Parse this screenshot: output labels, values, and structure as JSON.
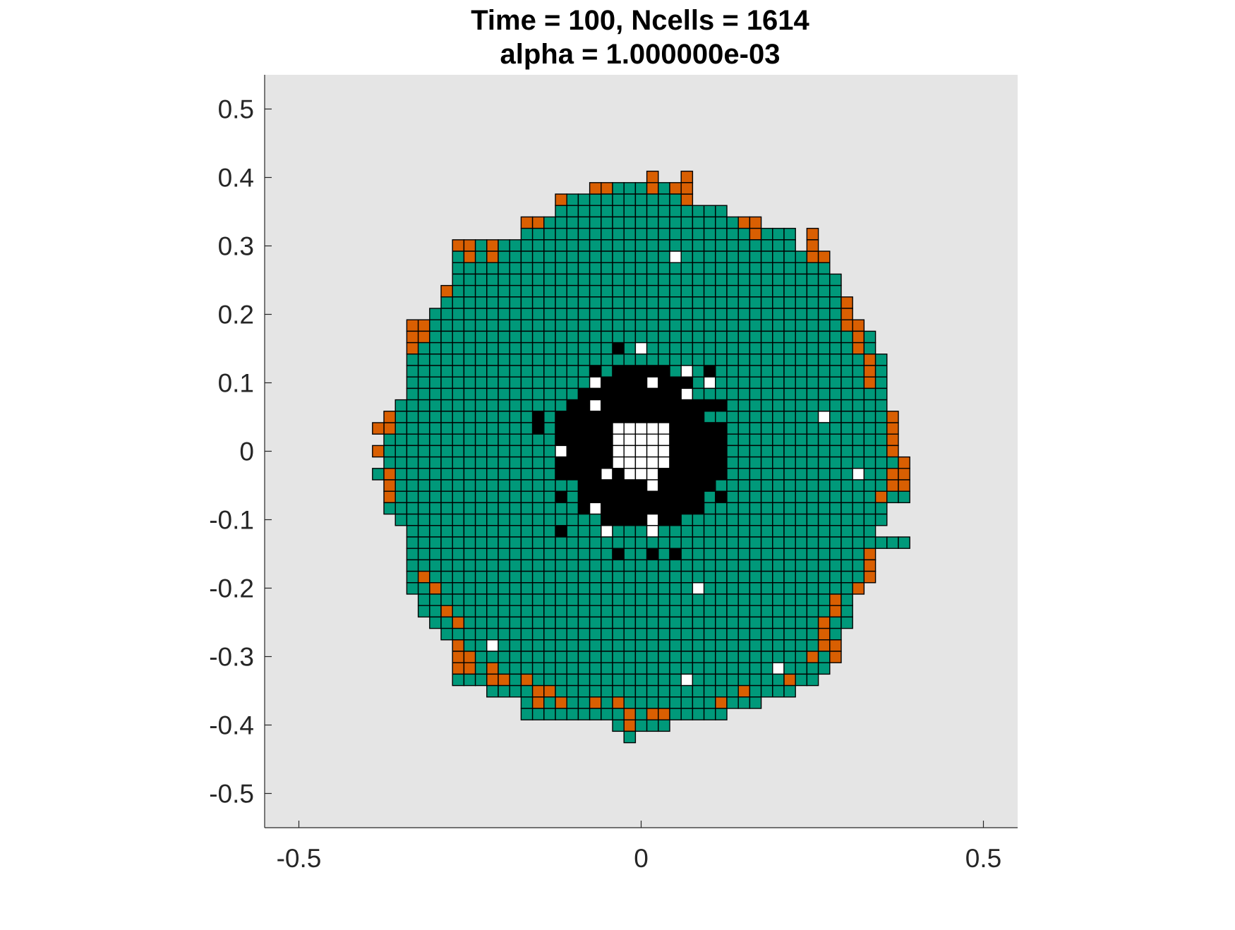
{
  "chart_data": {
    "type": "heatmap",
    "title": "Time = 100, Ncells = 1614",
    "subtitle": "alpha = 1.000000e-03",
    "xlabel": "",
    "ylabel": "",
    "xlim": [
      -0.55,
      0.55
    ],
    "ylim": [
      -0.55,
      0.55
    ],
    "x_ticks": [
      -0.5,
      0,
      0.5
    ],
    "x_tick_labels": [
      "-0.5",
      "0",
      "0.5"
    ],
    "y_ticks": [
      0.5,
      0.4,
      0.3,
      0.2,
      0.1,
      0,
      -0.1,
      -0.2,
      -0.3,
      -0.4,
      -0.5
    ],
    "y_tick_labels": [
      "0.5",
      "0.4",
      "0.3",
      "0.2",
      "0.1",
      "0",
      "-0.1",
      "-0.2",
      "-0.3",
      "-0.4",
      "-0.5"
    ],
    "grid": false,
    "cell_size": 0.0167,
    "colors": {
      "background": "#e5e5e5",
      "quiescent": "#00997a",
      "proliferating": "#d95f02",
      "necrotic": "#000000",
      "empty": "#ffffff",
      "cell_edge": "#000000"
    },
    "core_radius": 0.125,
    "hole_radius": 0.045,
    "outer_rows": [
      {
        "y": 0.39,
        "x": [
          -0.045,
          0.045
        ]
      },
      {
        "y": 0.373,
        "x": [
          -0.125,
          0.075
        ]
      },
      {
        "y": 0.357,
        "x": [
          -0.125,
          0.125
        ]
      },
      {
        "y": 0.34,
        "x": [
          -0.175,
          0.175
        ]
      },
      {
        "y": 0.323,
        "x": [
          -0.175,
          0.225
        ]
      },
      {
        "y": 0.307,
        "x": [
          -0.26,
          0.225
        ]
      },
      {
        "y": 0.29,
        "x": [
          -0.26,
          0.245
        ]
      },
      {
        "y": 0.273,
        "x": [
          -0.26,
          0.265
        ]
      },
      {
        "y": 0.257,
        "x": [
          -0.26,
          0.28
        ]
      },
      {
        "y": 0.24,
        "x": [
          -0.27,
          0.29
        ]
      },
      {
        "y": 0.223,
        "x": [
          -0.285,
          0.305
        ]
      },
      {
        "y": 0.207,
        "x": [
          -0.295,
          0.305
        ]
      },
      {
        "y": 0.19,
        "x": [
          -0.33,
          0.325
        ]
      },
      {
        "y": 0.173,
        "x": [
          -0.33,
          0.34
        ]
      },
      {
        "y": 0.157,
        "x": [
          -0.33,
          0.34
        ]
      },
      {
        "y": 0.14,
        "x": [
          -0.33,
          0.355
        ]
      },
      {
        "y": 0.123,
        "x": [
          -0.34,
          0.355
        ]
      },
      {
        "y": 0.107,
        "x": [
          -0.34,
          0.355
        ]
      },
      {
        "y": 0.09,
        "x": [
          -0.34,
          0.355
        ]
      },
      {
        "y": 0.073,
        "x": [
          -0.345,
          0.355
        ]
      },
      {
        "y": 0.057,
        "x": [
          -0.355,
          0.355
        ]
      },
      {
        "y": 0.04,
        "x": [
          -0.375,
          0.375
        ]
      },
      {
        "y": 0.023,
        "x": [
          -0.375,
          0.375
        ]
      },
      {
        "y": 0.007,
        "x": [
          -0.39,
          0.375
        ]
      },
      {
        "y": -0.01,
        "x": [
          -0.375,
          0.375
        ]
      },
      {
        "y": -0.027,
        "x": [
          -0.39,
          0.39
        ]
      },
      {
        "y": -0.043,
        "x": [
          -0.375,
          0.39
        ]
      },
      {
        "y": -0.06,
        "x": [
          -0.375,
          0.39
        ]
      },
      {
        "y": -0.077,
        "x": [
          -0.375,
          0.355
        ]
      },
      {
        "y": -0.093,
        "x": [
          -0.345,
          0.355
        ]
      },
      {
        "y": -0.11,
        "x": [
          -0.34,
          0.34
        ]
      },
      {
        "y": -0.127,
        "x": [
          -0.34,
          0.39
        ]
      },
      {
        "y": -0.143,
        "x": [
          -0.34,
          0.34
        ]
      },
      {
        "y": -0.16,
        "x": [
          -0.34,
          0.34
        ]
      },
      {
        "y": -0.177,
        "x": [
          -0.34,
          0.34
        ]
      },
      {
        "y": -0.193,
        "x": [
          -0.34,
          0.325
        ]
      },
      {
        "y": -0.21,
        "x": [
          -0.325,
          0.305
        ]
      },
      {
        "y": -0.227,
        "x": [
          -0.315,
          0.305
        ]
      },
      {
        "y": -0.243,
        "x": [
          -0.295,
          0.305
        ]
      },
      {
        "y": -0.26,
        "x": [
          -0.28,
          0.29
        ]
      },
      {
        "y": -0.277,
        "x": [
          -0.26,
          0.29
        ]
      },
      {
        "y": -0.293,
        "x": [
          -0.26,
          0.29
        ]
      },
      {
        "y": -0.31,
        "x": [
          -0.26,
          0.265
        ]
      },
      {
        "y": -0.327,
        "x": [
          -0.26,
          0.245
        ]
      },
      {
        "y": -0.343,
        "x": [
          -0.21,
          0.225
        ]
      },
      {
        "y": -0.36,
        "x": [
          -0.16,
          0.16
        ]
      },
      {
        "y": -0.377,
        "x": [
          -0.16,
          0.125
        ]
      },
      {
        "y": -0.393,
        "x": [
          -0.04,
          0.04
        ]
      },
      {
        "y": -0.41,
        "x": [
          -0.025,
          -0.01
        ]
      }
    ],
    "proliferating_cells": [
      [
        -0.125,
        0.373
      ],
      [
        -0.075,
        0.39
      ],
      [
        -0.06,
        0.39
      ],
      [
        -0.045,
        0.39
      ],
      [
        0.025,
        0.407
      ],
      [
        0.025,
        0.39
      ],
      [
        0.055,
        0.39
      ],
      [
        0.075,
        0.407
      ],
      [
        0.075,
        0.39
      ],
      [
        0.075,
        0.373
      ],
      [
        -0.175,
        0.34
      ],
      [
        -0.16,
        0.34
      ],
      [
        -0.145,
        0.34
      ],
      [
        0.145,
        0.34
      ],
      [
        0.16,
        0.34
      ],
      [
        0.16,
        0.323
      ],
      [
        0.175,
        0.323
      ],
      [
        0.245,
        0.323
      ],
      [
        0.245,
        0.307
      ],
      [
        0.245,
        0.29
      ],
      [
        0.26,
        0.29
      ],
      [
        -0.26,
        0.307
      ],
      [
        -0.245,
        0.307
      ],
      [
        -0.225,
        0.307
      ],
      [
        -0.21,
        0.307
      ],
      [
        -0.245,
        0.29
      ],
      [
        -0.225,
        0.29
      ],
      [
        -0.28,
        0.24
      ],
      [
        -0.33,
        0.19
      ],
      [
        -0.315,
        0.19
      ],
      [
        -0.33,
        0.173
      ],
      [
        -0.315,
        0.173
      ],
      [
        -0.33,
        0.157
      ],
      [
        0.305,
        0.223
      ],
      [
        0.305,
        0.207
      ],
      [
        0.305,
        0.19
      ],
      [
        0.325,
        0.19
      ],
      [
        0.325,
        0.173
      ],
      [
        0.325,
        0.157
      ],
      [
        0.34,
        0.14
      ],
      [
        0.34,
        0.123
      ],
      [
        0.34,
        0.107
      ],
      [
        -0.375,
        0.057
      ],
      [
        -0.375,
        0.04
      ],
      [
        -0.39,
        0.04
      ],
      [
        -0.36,
        0.04
      ],
      [
        -0.39,
        0.007
      ],
      [
        0.375,
        0.057
      ],
      [
        0.375,
        0.04
      ],
      [
        0.375,
        0.023
      ],
      [
        0.375,
        0.007
      ],
      [
        0.39,
        -0.01
      ],
      [
        0.39,
        -0.027
      ],
      [
        0.375,
        -0.027
      ],
      [
        0.375,
        -0.043
      ],
      [
        0.39,
        -0.043
      ],
      [
        0.355,
        -0.06
      ],
      [
        -0.375,
        -0.027
      ],
      [
        -0.375,
        -0.043
      ],
      [
        -0.36,
        -0.043
      ],
      [
        -0.375,
        -0.06
      ],
      [
        -0.36,
        -0.06
      ],
      [
        0.34,
        -0.143
      ],
      [
        0.34,
        -0.16
      ],
      [
        0.34,
        -0.177
      ],
      [
        0.325,
        -0.193
      ],
      [
        -0.315,
        -0.177
      ],
      [
        -0.295,
        -0.193
      ],
      [
        -0.28,
        -0.227
      ],
      [
        -0.265,
        -0.243
      ],
      [
        0.29,
        -0.21
      ],
      [
        0.29,
        -0.227
      ],
      [
        0.27,
        -0.243
      ],
      [
        0.27,
        -0.26
      ],
      [
        0.27,
        -0.277
      ],
      [
        0.29,
        -0.277
      ],
      [
        0.29,
        -0.293
      ],
      [
        0.245,
        -0.293
      ],
      [
        0.21,
        -0.327
      ],
      [
        0.225,
        -0.327
      ],
      [
        -0.26,
        -0.277
      ],
      [
        -0.26,
        -0.293
      ],
      [
        -0.245,
        -0.293
      ],
      [
        -0.26,
        -0.31
      ],
      [
        -0.245,
        -0.31
      ],
      [
        -0.225,
        -0.31
      ],
      [
        -0.21,
        -0.327
      ],
      [
        -0.195,
        -0.327
      ],
      [
        -0.175,
        -0.327
      ],
      [
        -0.145,
        -0.343
      ],
      [
        -0.13,
        -0.343
      ],
      [
        -0.145,
        -0.36
      ],
      [
        -0.11,
        -0.36
      ],
      [
        0.145,
        -0.343
      ],
      [
        0.125,
        -0.36
      ],
      [
        -0.075,
        -0.36
      ],
      [
        -0.04,
        -0.36
      ],
      [
        -0.025,
        -0.377
      ],
      [
        -0.01,
        -0.377
      ],
      [
        0.01,
        -0.377
      ],
      [
        0.025,
        -0.377
      ],
      [
        0.04,
        -0.377
      ],
      [
        -0.025,
        -0.393
      ]
    ],
    "white_cells": [
      [
        0.045,
        0.29
      ],
      [
        0.0,
        0.157
      ],
      [
        0.075,
        0.123
      ],
      [
        0.095,
        0.107
      ],
      [
        -0.075,
        0.107
      ],
      [
        0.01,
        0.107
      ],
      [
        0.075,
        0.09
      ],
      [
        -0.06,
        0.073
      ],
      [
        -0.04,
        0.04
      ],
      [
        0.025,
        0.04
      ],
      [
        0.27,
        0.057
      ],
      [
        -0.125,
        0.007
      ],
      [
        -0.045,
        -0.027
      ],
      [
        -0.025,
        -0.027
      ],
      [
        0.325,
        -0.027
      ],
      [
        0.01,
        -0.043
      ],
      [
        -0.06,
        -0.077
      ],
      [
        0.01,
        -0.093
      ],
      [
        -0.045,
        -0.11
      ],
      [
        0.01,
        -0.11
      ],
      [
        0.085,
        -0.193
      ],
      [
        -0.21,
        -0.277
      ],
      [
        0.205,
        -0.31
      ],
      [
        0.075,
        -0.327
      ]
    ],
    "black_outliers": [
      [
        -0.04,
        0.157
      ],
      [
        -0.005,
        0.157
      ],
      [
        -0.06,
        0.123
      ],
      [
        0.105,
        0.123
      ],
      [
        0.105,
        0.107
      ],
      [
        0.125,
        0.073
      ],
      [
        -0.145,
        0.057
      ],
      [
        -0.125,
        0.057
      ],
      [
        -0.145,
        0.04
      ],
      [
        -0.125,
        -0.06
      ],
      [
        0.125,
        -0.06
      ],
      [
        -0.11,
        -0.11
      ],
      [
        -0.04,
        -0.143
      ],
      [
        0.01,
        -0.143
      ],
      [
        0.045,
        -0.143
      ]
    ],
    "green_in_core": [
      [
        -0.11,
        0.007
      ],
      [
        0.085,
        0.09
      ],
      [
        0.105,
        0.057
      ],
      [
        -0.095,
        -0.043
      ],
      [
        0.105,
        -0.077
      ],
      [
        0.09,
        -0.11
      ],
      [
        -0.025,
        0.14
      ],
      [
        0.075,
        -0.127
      ],
      [
        -0.09,
        -0.093
      ]
    ]
  }
}
